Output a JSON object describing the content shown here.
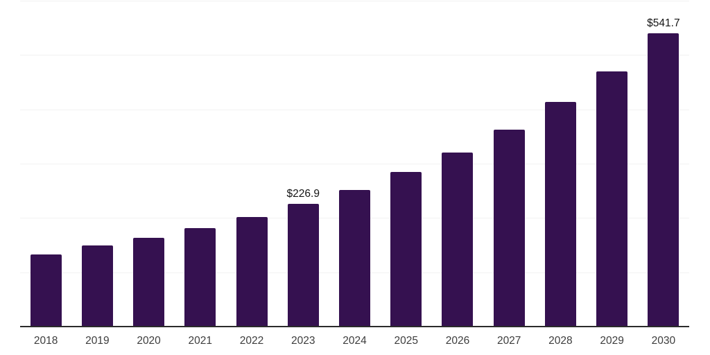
{
  "chart_data": {
    "type": "bar",
    "title": "",
    "categories": [
      "2018",
      "2019",
      "2020",
      "2021",
      "2022",
      "2023",
      "2024",
      "2025",
      "2026",
      "2027",
      "2028",
      "2029",
      "2030"
    ],
    "values": [
      133.5,
      151.2,
      164.9,
      182.1,
      203.3,
      226.9,
      252.6,
      285.6,
      322.0,
      363.4,
      415.5,
      471.6,
      541.7
    ],
    "value_labels": [
      "",
      "",
      "",
      "",
      "",
      "$226.9",
      "",
      "",
      "",
      "",
      "",
      "",
      "$541.7"
    ],
    "xlabel": "",
    "ylabel": "",
    "ylim": [
      0,
      600
    ],
    "gridline_step": 100,
    "grid": "horizontal",
    "legend": "none",
    "colors": {
      "bar": "#351150",
      "axis_line": "#2b2b2b",
      "gridline": "#f2f2f2",
      "tick_label": "#3d3d3d",
      "value_label": "#141414",
      "background": "#ffffff"
    }
  }
}
